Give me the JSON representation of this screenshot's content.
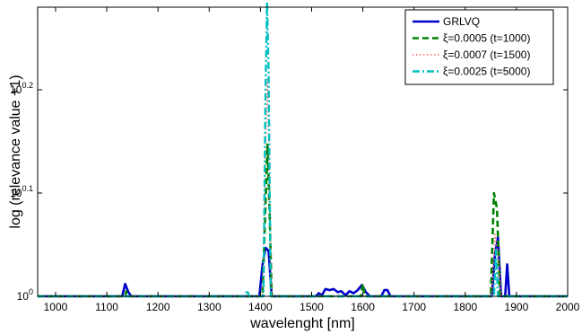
{
  "chart_data": {
    "type": "line",
    "xlabel": "wavelenght [nm]",
    "ylabel": "log (relevance value +1)",
    "xlim": [
      965,
      2000
    ],
    "ylim": [
      0,
      0.28
    ],
    "y_scale": "log10 exponent",
    "x_ticks": [
      1000,
      1100,
      1200,
      1300,
      1400,
      1500,
      1600,
      1700,
      1800,
      1900,
      2000
    ],
    "y_ticks": [
      {
        "base": "10",
        "exp": "0",
        "value": 0
      },
      {
        "base": "10",
        "exp": "0.1",
        "value": 0.1
      },
      {
        "base": "10",
        "exp": "0.2",
        "value": 0.2
      }
    ],
    "grid": false,
    "legend_position": "top-right",
    "series": [
      {
        "name": "GRLVQ",
        "color": "#0000cc",
        "style": "solid",
        "points": [
          [
            965,
            0
          ],
          [
            1130,
            0
          ],
          [
            1136,
            0.012
          ],
          [
            1142,
            0.004
          ],
          [
            1148,
            0
          ],
          [
            1398,
            0
          ],
          [
            1404,
            0.03
          ],
          [
            1410,
            0.047
          ],
          [
            1416,
            0.044
          ],
          [
            1422,
            0
          ],
          [
            1508,
            0
          ],
          [
            1514,
            0.003
          ],
          [
            1520,
            0.001
          ],
          [
            1527,
            0.007
          ],
          [
            1535,
            0.006
          ],
          [
            1543,
            0.007
          ],
          [
            1551,
            0.004
          ],
          [
            1558,
            0.005
          ],
          [
            1566,
            0.001
          ],
          [
            1574,
            0.005
          ],
          [
            1582,
            0.003
          ],
          [
            1590,
            0.006
          ],
          [
            1598,
            0.011
          ],
          [
            1606,
            0.004
          ],
          [
            1614,
            0
          ],
          [
            1636,
            0
          ],
          [
            1642,
            0.006
          ],
          [
            1648,
            0.006
          ],
          [
            1654,
            0
          ],
          [
            1852,
            0
          ],
          [
            1858,
            0.04
          ],
          [
            1864,
            0.057
          ],
          [
            1870,
            0
          ],
          [
            1878,
            0
          ],
          [
            1882,
            0.031
          ],
          [
            1886,
            0
          ],
          [
            2000,
            0
          ]
        ]
      },
      {
        "name": "ξ=0.0005 (t=1000)",
        "color": "#008000",
        "style": "dashed",
        "points": [
          [
            965,
            0
          ],
          [
            1136,
            0
          ],
          [
            1138,
            0.005
          ],
          [
            1140,
            0
          ],
          [
            1404,
            0
          ],
          [
            1410,
            0.09
          ],
          [
            1414,
            0.147
          ],
          [
            1418,
            0.08
          ],
          [
            1422,
            0
          ],
          [
            1596,
            0
          ],
          [
            1600,
            0.012
          ],
          [
            1604,
            0
          ],
          [
            1850,
            0
          ],
          [
            1856,
            0.1
          ],
          [
            1862,
            0.085
          ],
          [
            1868,
            0
          ],
          [
            2000,
            0
          ]
        ]
      },
      {
        "name": "ξ=0.0007 (t=1500)",
        "color": "#ff6666",
        "style": "dotted",
        "points": [
          [
            965,
            0
          ],
          [
            1404,
            0
          ],
          [
            1410,
            0.14
          ],
          [
            1414,
            0.21
          ],
          [
            1418,
            0.1
          ],
          [
            1422,
            0
          ],
          [
            1852,
            0
          ],
          [
            1858,
            0.06
          ],
          [
            1864,
            0.04
          ],
          [
            1870,
            0
          ],
          [
            2000,
            0
          ]
        ]
      },
      {
        "name": "ξ=0.0025 (t=5000)",
        "color": "#00c0c0",
        "style": "dashdot",
        "points": [
          [
            965,
            0
          ],
          [
            1370,
            0
          ],
          [
            1374,
            0.006
          ],
          [
            1378,
            0
          ],
          [
            1406,
            0
          ],
          [
            1410,
            0.2
          ],
          [
            1413,
            0.285
          ],
          [
            1416,
            0.22
          ],
          [
            1420,
            0
          ],
          [
            1856,
            0
          ],
          [
            1860,
            0.045
          ],
          [
            1864,
            0
          ],
          [
            2000,
            0
          ]
        ]
      }
    ]
  }
}
